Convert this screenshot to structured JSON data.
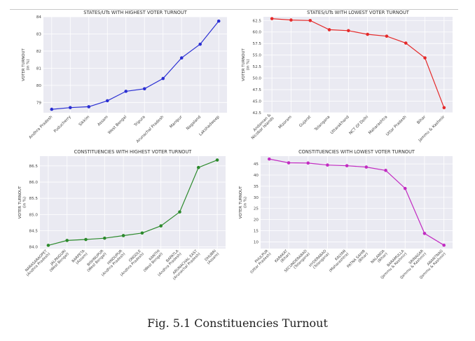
{
  "caption": "Fig. 5.1 Constituencies Turnout",
  "chart_data": [
    {
      "type": "line",
      "title": "STATES/UTs WITH HIGHEST VOTER TURNOUT",
      "ylabel": "VOTER TURNOUT\n(in %)",
      "color": "#2a2fd3",
      "categories": [
        "Andhra Pradesh",
        "Puducherry",
        "Sikkim",
        "Assam",
        "West Bengal",
        "Tripura",
        "Arunachal Pradesh",
        "Manipur",
        "Nagaland",
        "Lakshadweep"
      ],
      "values": [
        78.6,
        78.7,
        78.75,
        79.1,
        79.65,
        79.8,
        80.4,
        81.6,
        82.4,
        83.75
      ],
      "ylim": [
        78.4,
        84
      ],
      "yticks": [
        79,
        80,
        81,
        82,
        83,
        84
      ],
      "ytick_labels": [
        "79",
        "80",
        "81",
        "82",
        "83",
        "84"
      ],
      "grid": true
    },
    {
      "type": "line",
      "title": "STATES/UTs WITH LOWEST VOTER TURNOUT",
      "ylabel": "VOTER TURNOUT\n(in %)",
      "color": "#e52a2a",
      "categories": [
        "Andaman &\nNicobar Islands",
        "Mizoram",
        "Gujarat",
        "Telangana",
        "Uttarakhand",
        "NCT Of Delhi",
        "Maharashtra",
        "Uttar Pradesh",
        "Bihar",
        "Jammu & Kashmir"
      ],
      "values": [
        62.9,
        62.6,
        62.5,
        60.5,
        60.3,
        59.5,
        59.1,
        57.6,
        54.4,
        43.6
      ],
      "ylim": [
        42.5,
        63.3
      ],
      "yticks": [
        42.5,
        45.0,
        47.5,
        50.0,
        52.5,
        55.0,
        57.5,
        60.0,
        62.5
      ],
      "ytick_labels": [
        "42.5",
        "45.0",
        "47.5",
        "50.0",
        "52.5",
        "55.0",
        "57.5",
        "60.0",
        "62.5"
      ],
      "grid": true
    },
    {
      "type": "line",
      "title": "CONSTITUENCIES WITH HIGHEST VOTER TURNOUT",
      "ylabel": "VOTER TURNOUT\n(in %)",
      "color": "#2c8a2c",
      "categories": [
        "NARASARAOPET\n(Andhra Pradesh)",
        "JALPAIGURI\n(West Bengal)",
        "BARPETA\n(Assam)",
        "BISHNUPUR\n(West Bengal)",
        "HINDUPUR\n(Andhra Pradesh)",
        "ONGOLE\n(Andhra Pradesh)",
        "KANTHI\n(West Bengal)",
        "BAPATLA\n(Andhra Pradesh)",
        "ARUNACHAL EAST\n(Arunachal Pradesh)",
        "DHUBRI\n(Assam)"
      ],
      "values": [
        84.05,
        84.2,
        84.23,
        84.27,
        84.35,
        84.43,
        84.65,
        85.08,
        86.45,
        86.68
      ],
      "ylim": [
        83.95,
        86.8
      ],
      "yticks": [
        84.0,
        84.5,
        85.0,
        85.5,
        86.0,
        86.5
      ],
      "ytick_labels": [
        "84.0",
        "84.5",
        "85.0",
        "85.5",
        "86.0",
        "86.5"
      ],
      "grid": true
    },
    {
      "type": "line",
      "title": "CONSTITUENCIES WITH LOWEST VOTER TURNOUT",
      "ylabel": "VOTER TURNOUT\n(in %)",
      "color": "#c22cc2",
      "categories": [
        "PHULPUR\n(Uttar Pradesh)",
        "KARAKAT\n(Bihar)",
        "SECUNDERABAD\n(Telangana)",
        "HYDERABAD\n(Telangana)",
        "KALYAN\n(Maharashtra)",
        "PATNA SAHIB\n(Bihar)",
        "NALANDA\n(Bihar)",
        "BARAMULLA\n(Jammu & Kashmir)",
        "SRINAGAR\n(Jammu & Kashmir)",
        "ANANTNAG\n(Jammu & Kashmir)"
      ],
      "values": [
        47.2,
        45.5,
        45.4,
        44.5,
        44.2,
        43.6,
        42.1,
        34.0,
        13.8,
        8.5
      ],
      "ylim": [
        7,
        48.5
      ],
      "yticks": [
        10,
        15,
        20,
        25,
        30,
        35,
        40,
        45
      ],
      "ytick_labels": [
        "10",
        "15",
        "20",
        "25",
        "30",
        "35",
        "40",
        "45"
      ],
      "grid": true
    }
  ]
}
